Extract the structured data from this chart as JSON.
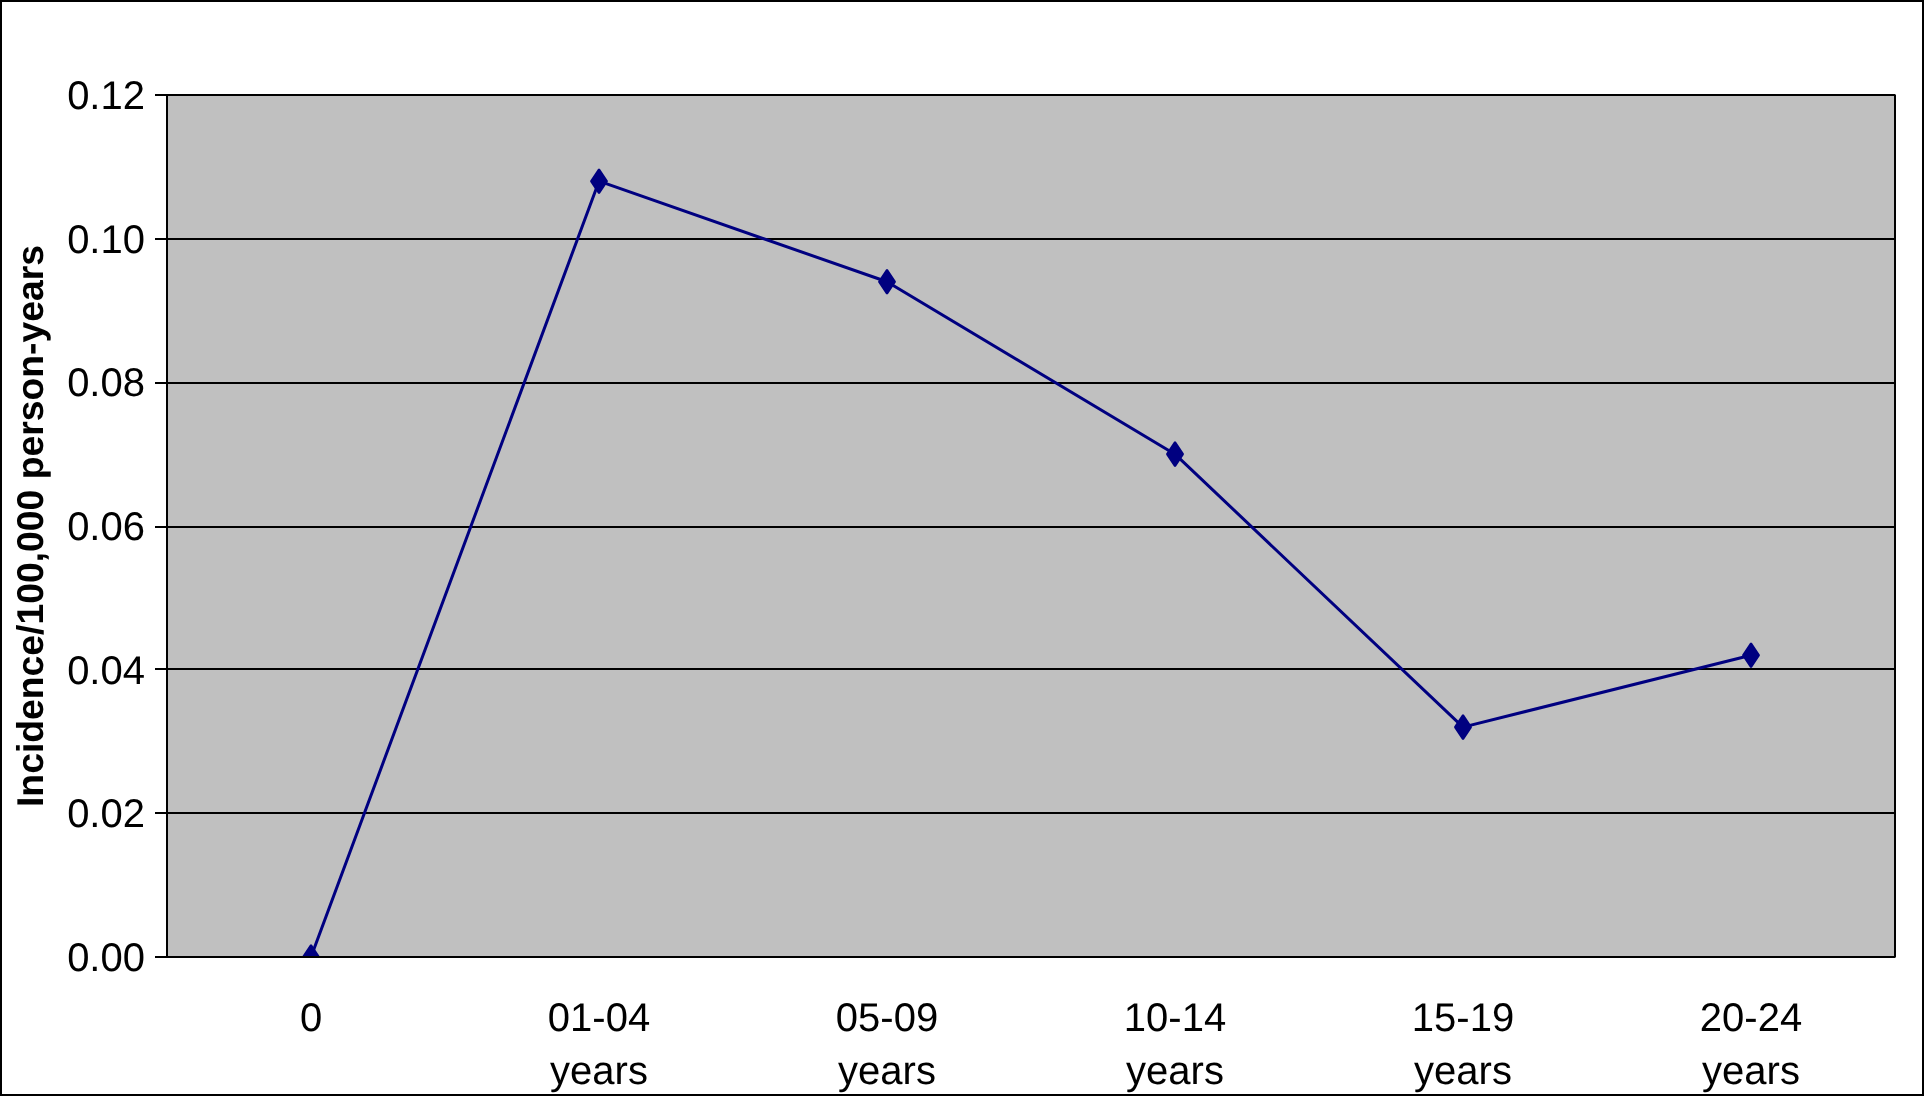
{
  "chart_data": {
    "type": "line",
    "ylabel": "Incidence/100,000 person-years",
    "categories": [
      "0",
      "01-04\nyears",
      "05-09\nyears",
      "10-14\nyears",
      "15-19\nyears",
      "20-24\nyears"
    ],
    "series": [
      {
        "color": "#000080",
        "values": [
          0.0,
          0.108,
          0.094,
          0.07,
          0.032,
          0.042
        ]
      }
    ],
    "ylim": [
      0,
      0.12
    ],
    "yticks": [
      {
        "value": 0,
        "label": "0.00"
      },
      {
        "value": 0.02,
        "label": "0.02"
      },
      {
        "value": 0.04,
        "label": "0.04"
      },
      {
        "value": 0.06,
        "label": "0.06"
      },
      {
        "value": 0.08,
        "label": "0.08"
      },
      {
        "value": 0.1,
        "label": "0.10"
      },
      {
        "value": 0.12,
        "label": "0.12"
      }
    ],
    "grid": "y",
    "marker": "diamond",
    "line_style": "solid"
  }
}
